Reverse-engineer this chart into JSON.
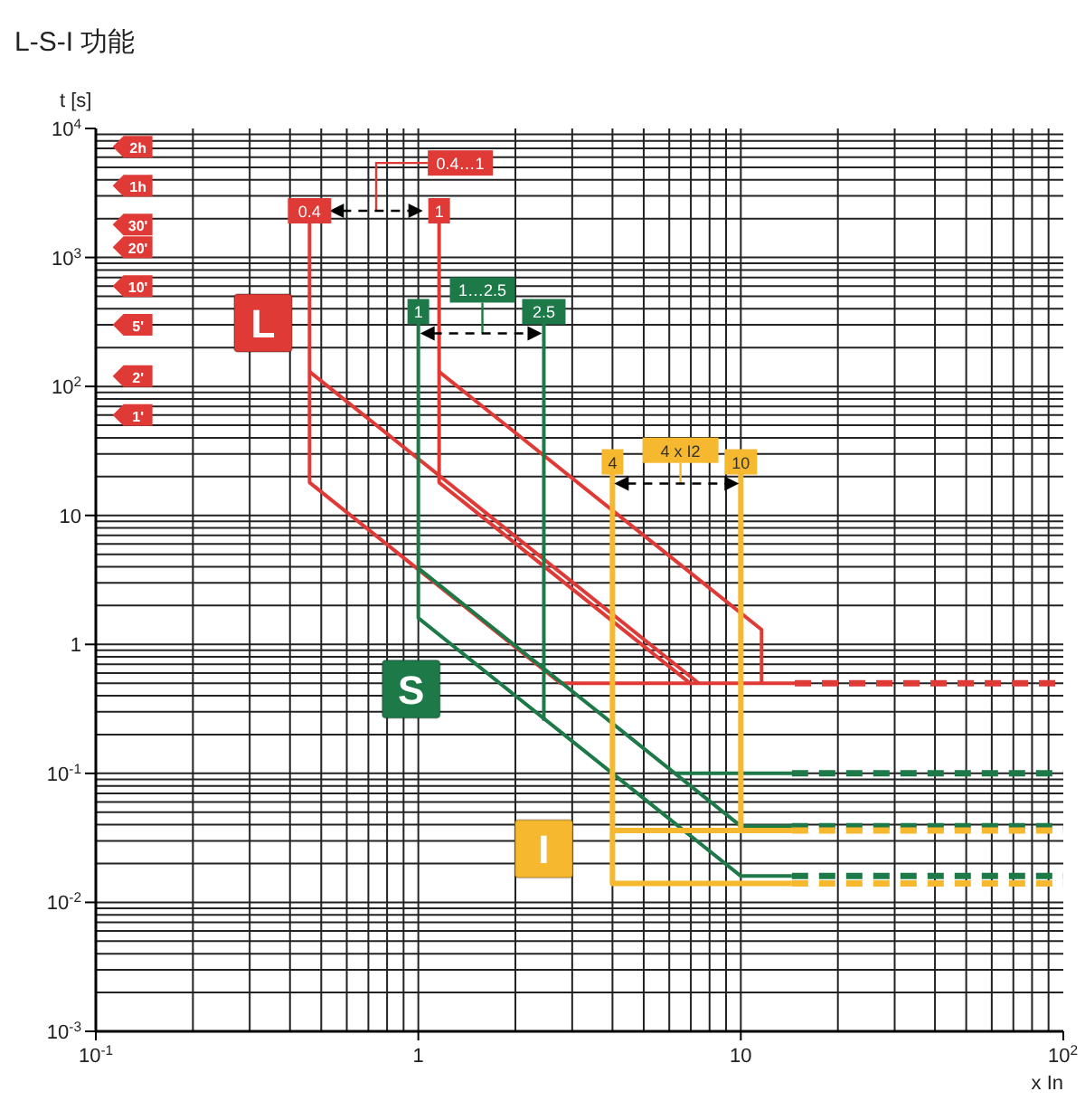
{
  "chart_data": {
    "type": "line",
    "title": "L-S-I  功能",
    "xlabel": "x In",
    "ylabel": "t [s]",
    "log": "xy",
    "grid": true,
    "xlim": [
      0.1,
      100
    ],
    "xticks": [
      {
        "value": 0.1,
        "label": "10$^{-1}$"
      },
      1,
      10,
      {
        "value": 100,
        "label": "10$^{2}$"
      }
    ],
    "ylim": [
      0.001,
      10000
    ],
    "yticks": [
      {
        "value": 0.001,
        "label": "10$^{-3}$"
      },
      {
        "value": 0.01,
        "label": "10$^{-2}$"
      },
      {
        "value": 0.1,
        "label": "10$^{-1}$"
      },
      1,
      10,
      {
        "value": 100,
        "label": "10$^{2}$"
      },
      {
        "value": 1000,
        "label": "10$^{3}$"
      },
      {
        "value": 10000,
        "label": "10$^{4}$"
      }
    ],
    "series": [
      {
        "color": "#e03a36",
        "x": [
          0.46,
          0.46,
          2.76,
          14.7
        ],
        "values": [
          2300,
          18,
          0.5,
          0.5
        ]
      },
      {
        "color": "#e03a36",
        "x": [
          0.46,
          7.4
        ],
        "values": [
          130,
          0.5
        ]
      },
      {
        "color": "#e03a36",
        "x": [
          1.16,
          1.16,
          6.96
        ],
        "values": [
          2300,
          18,
          0.5
        ]
      },
      {
        "color": "#e03a36",
        "x": [
          1.16,
          11.6,
          11.6
        ],
        "values": [
          130,
          1.3,
          0.5
        ]
      },
      {
        "color": "#e03a36",
        "line_style": "dashed",
        "x": [
          14.7,
          100
        ],
        "values": [
          0.5,
          0.5
        ]
      },
      {
        "color": "#1d7a48",
        "x": [
          1,
          1,
          10,
          14.4
        ],
        "values": [
          380,
          1.6,
          0.016,
          0.016
        ]
      },
      {
        "color": "#1d7a48",
        "x": [
          1,
          10,
          14.4
        ],
        "values": [
          3.9,
          0.039,
          0.039
        ]
      },
      {
        "color": "#1d7a48",
        "x": [
          6.24,
          14.4
        ],
        "values": [
          0.1,
          0.1
        ]
      },
      {
        "color": "#1d7a48",
        "x": [
          2.45,
          2.45
        ],
        "values": [
          380,
          0.256
        ]
      },
      {
        "color": "#1d7a48",
        "line_style": "dashed",
        "x": [
          14.4,
          100
        ],
        "values": [
          0.1,
          0.1
        ]
      },
      {
        "color": "#1d7a48",
        "line_style": "dashed",
        "x": [
          14.4,
          100
        ],
        "values": [
          0.039,
          0.039
        ]
      },
      {
        "color": "#1d7a48",
        "line_style": "dashed",
        "x": [
          14.4,
          100
        ],
        "values": [
          0.016,
          0.016
        ]
      },
      {
        "color": "#f5b82e",
        "x": [
          4,
          4,
          14.4
        ],
        "values": [
          26,
          0.014,
          0.014
        ]
      },
      {
        "color": "#f5b82e",
        "x": [
          4,
          14.4
        ],
        "values": [
          0.036,
          0.036
        ]
      },
      {
        "color": "#f5b82e",
        "x": [
          10,
          10
        ],
        "values": [
          26,
          0.036
        ]
      },
      {
        "color": "#f5b82e",
        "line_style": "dashed",
        "x": [
          14.4,
          100
        ],
        "values": [
          0.036,
          0.036
        ]
      },
      {
        "color": "#f5b82e",
        "line_style": "dashed",
        "x": [
          14.4,
          100
        ],
        "values": [
          0.014,
          0.014
        ]
      }
    ],
    "annotations": [
      {
        "text": "2h",
        "x": 0.13,
        "y": 7200
      },
      {
        "text": "1h",
        "x": 0.13,
        "y": 3600
      },
      {
        "text": "30'",
        "x": 0.13,
        "y": 1800
      },
      {
        "text": "20'",
        "x": 0.13,
        "y": 1200
      },
      {
        "text": "10'",
        "x": 0.13,
        "y": 600
      },
      {
        "text": "5'",
        "x": 0.13,
        "y": 300
      },
      {
        "text": "2'",
        "x": 0.13,
        "y": 120
      },
      {
        "text": "1'",
        "x": 0.13,
        "y": 60
      },
      {
        "text": "0.4",
        "x": 0.46,
        "y": 2300
      },
      {
        "text": "1",
        "x": 1.16,
        "y": 2300
      },
      {
        "text": "0.4…1",
        "x": 1.35,
        "y": 5400
      },
      {
        "text": "L",
        "x": 0.33,
        "y": 310
      },
      {
        "text": "1",
        "x": 1,
        "y": 380
      },
      {
        "text": "2.5",
        "x": 2.45,
        "y": 380
      },
      {
        "text": "1…2.5",
        "x": 1.58,
        "y": 560
      },
      {
        "text": "S",
        "x": 0.95,
        "y": 0.45
      },
      {
        "text": "4",
        "x": 4,
        "y": 26
      },
      {
        "text": "10",
        "x": 10,
        "y": 26
      },
      {
        "text": "4 x I2",
        "x": 6.5,
        "y": 32
      },
      {
        "text": "I",
        "x": 2.45,
        "y": 0.026
      }
    ]
  }
}
